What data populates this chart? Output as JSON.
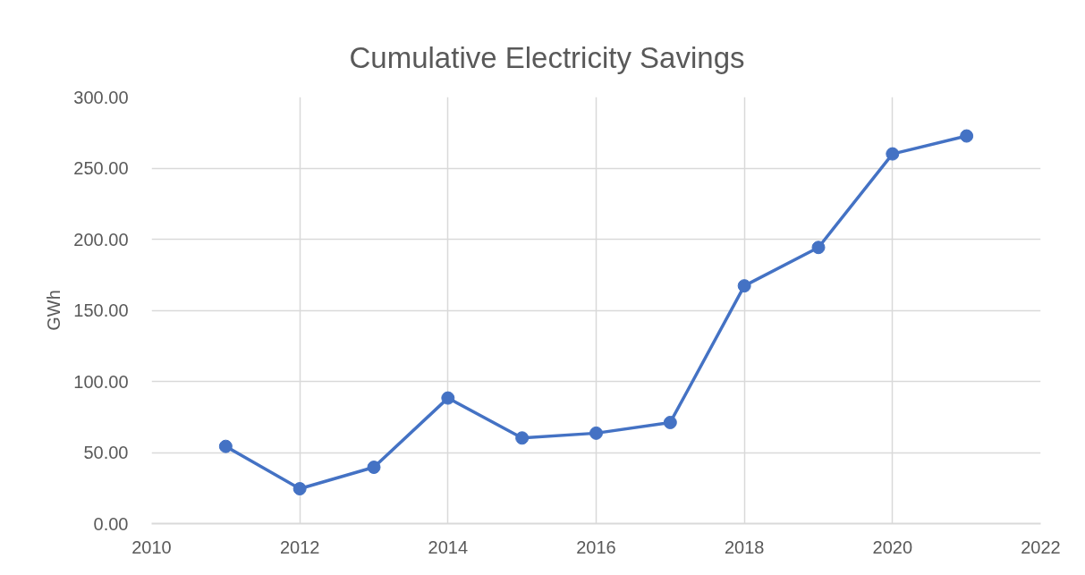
{
  "chart_data": {
    "type": "line",
    "title": "Cumulative Electricity Savings",
    "ylabel": "GWh",
    "x": [
      2011,
      2012,
      2013,
      2014,
      2015,
      2016,
      2017,
      2018,
      2019,
      2020,
      2021
    ],
    "series": [
      {
        "color": "#4472c4",
        "values": [
          54.3,
          24.5,
          39.6,
          88.3,
          60.2,
          63.6,
          71.1,
          167.2,
          194.2,
          260.0,
          272.6
        ]
      }
    ],
    "xlim": [
      2010,
      2022
    ],
    "xticks": [
      2010,
      2012,
      2014,
      2016,
      2018,
      2020,
      2022
    ],
    "ylim": [
      0,
      300
    ],
    "yticks": [
      {
        "value": 0,
        "label": "0.00"
      },
      {
        "value": 50,
        "label": "50.00"
      },
      {
        "value": 100,
        "label": "100.00"
      },
      {
        "value": 150,
        "label": "150.00"
      },
      {
        "value": 200,
        "label": "200.00"
      },
      {
        "value": 250,
        "label": "250.00"
      },
      {
        "value": 300,
        "label": "300.00"
      }
    ],
    "grid": true,
    "marker": "circle",
    "line_style": "solid"
  }
}
